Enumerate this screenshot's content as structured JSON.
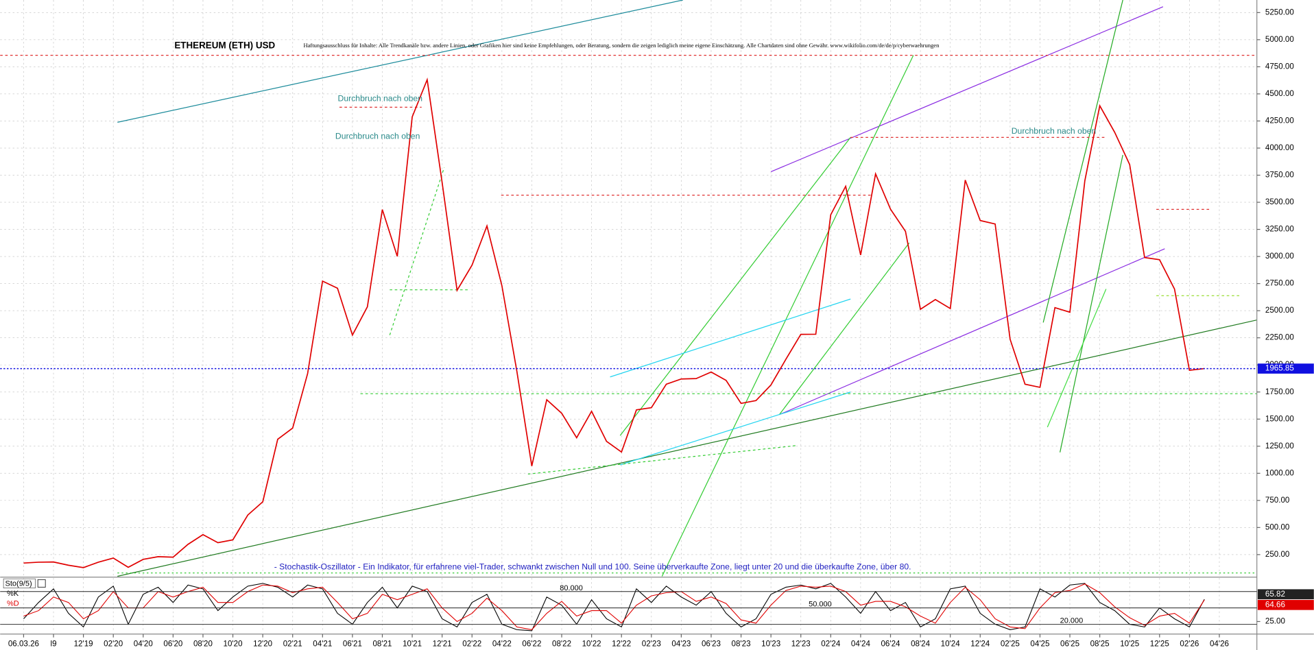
{
  "chart_data": {
    "type": "line",
    "title": "ETHEREUM (ETH) USD",
    "subtitle": "Haftungsausschluss für Inhalte: Alle Trendkanäle bzw. andere Linien, oder Grafiken hier sind keine Empfehlungen, oder Beratung, sondern die zeigen lediglich meine eigene Einschätzung. Alle Chartdaten sind ohne Gewähr. www.wikifolio.com/de/de/p/cyberwaehrungen",
    "annotations": [
      "Durchbruch nach oben",
      "Durchbruch nach oben",
      "Durchbruch nach oben",
      "- Stochastik-Oszillator - Ein Indikator, für erfahrene viel-Trader, schwankt zwischen Null und 100. Seine überverkaufte Zone, liegt unter 20 und die überkaufte Zone, über 80."
    ],
    "categories": [
      "06.03.26",
      null,
      "l9",
      null,
      "12'19",
      null,
      "02'20",
      null,
      "04'20",
      null,
      "06'20",
      null,
      "08'20",
      null,
      "10'20",
      null,
      "12'20",
      null,
      "02'21",
      null,
      "04'21",
      null,
      "06'21",
      null,
      "08'21",
      null,
      "10'21",
      null,
      "12'21",
      null,
      "02'22",
      null,
      "04'22",
      null,
      "06'22",
      null,
      "08'22",
      null,
      "10'22",
      null,
      "12'22",
      null,
      "02'23",
      null,
      "04'23",
      null,
      "06'23",
      null,
      "08'23",
      null,
      "10'23",
      null,
      "12'23",
      null,
      "02'24",
      null,
      "04'24",
      null,
      "06'24",
      null,
      "08'24",
      null,
      "10'24",
      null,
      "12'24",
      null,
      "02'25",
      null,
      "04'25",
      null,
      "06'25",
      null,
      "08'25",
      null,
      "10'25",
      null,
      "12'25",
      null,
      "02'26",
      null,
      "04'26"
    ],
    "values": [
      172,
      180,
      182,
      152,
      130,
      180,
      218,
      133,
      206,
      231,
      226,
      345,
      434,
      360,
      386,
      615,
      737,
      1314,
      1417,
      1919,
      2773,
      2707,
      2275,
      2536,
      3433,
      3001,
      4288,
      4631,
      3683,
      2688,
      2920,
      3282,
      2730,
      1942,
      1067,
      1679,
      1554,
      1328,
      1572,
      1295,
      1196,
      1585,
      1605,
      1822,
      1870,
      1874,
      1934,
      1857,
      1645,
      1671,
      1815,
      2052,
      2282,
      2283,
      3385,
      3647,
      3014,
      3762,
      3436,
      3232,
      2513,
      2603,
      2520,
      3705,
      3332,
      3300,
      2237,
      1822,
      1793,
      2528,
      2486,
      3698,
      4391,
      4145,
      3848,
      2990,
      2970,
      2700,
      1950,
      1965.85,
      null
    ],
    "color": "#e00000",
    "ylim": [
      50,
      5366
    ],
    "yticks": [
      {
        "value": 250,
        "label": "250.00"
      },
      {
        "value": 500,
        "label": "500.00"
      },
      {
        "value": 750,
        "label": "750.00"
      },
      {
        "value": 1000,
        "label": "1000.00"
      },
      {
        "value": 1250,
        "label": "1250.00"
      },
      {
        "value": 1500,
        "label": "1500.00"
      },
      {
        "value": 1750,
        "label": "1750.00"
      },
      {
        "value": 2000,
        "label": "2000.00"
      },
      {
        "value": 2250,
        "label": "2250.00"
      },
      {
        "value": 2500,
        "label": "2500.00"
      },
      {
        "value": 2750,
        "label": "2750.00"
      },
      {
        "value": 3000,
        "label": "3000.00"
      },
      {
        "value": 3250,
        "label": "3250.00"
      },
      {
        "value": 3500,
        "label": "3500.00"
      },
      {
        "value": 3750,
        "label": "3750.00"
      },
      {
        "value": 4000,
        "label": "4000.00"
      },
      {
        "value": 4250,
        "label": "4250.00"
      },
      {
        "value": 4500,
        "label": "4500.00"
      },
      {
        "value": 4750,
        "label": "4750.00"
      },
      {
        "value": 5000,
        "label": "5000.00"
      },
      {
        "value": 5250,
        "label": "5250.00"
      }
    ],
    "grid": true,
    "indicator": {
      "type": "line",
      "name": "Sto(9/5)",
      "ylim": [
        5,
        105
      ],
      "yticks": [
        {
          "value": 25,
          "label": "25.00"
        }
      ],
      "levels": [
        {
          "value": 80,
          "label": "80.000"
        },
        {
          "value": 50,
          "label": "50.000"
        },
        {
          "value": 20,
          "label": "20.000"
        }
      ],
      "series": [
        {
          "name": "%K",
          "color": "#000000",
          "values": [
            30,
            60,
            85,
            40,
            15,
            70,
            90,
            20,
            75,
            88,
            60,
            92,
            85,
            45,
            70,
            90,
            95,
            88,
            70,
            92,
            85,
            40,
            20,
            60,
            88,
            50,
            90,
            80,
            30,
            15,
            60,
            75,
            20,
            10,
            8,
            70,
            55,
            20,
            65,
            30,
            15,
            85,
            60,
            90,
            70,
            55,
            80,
            40,
            15,
            30,
            75,
            88,
            92,
            85,
            95,
            70,
            40,
            80,
            45,
            60,
            15,
            30,
            85,
            90,
            40,
            20,
            10,
            15,
            85,
            70,
            92,
            95,
            60,
            45,
            20,
            15,
            50,
            30,
            15,
            65.82,
            null
          ]
        },
        {
          "name": "%D",
          "color": "#e00000",
          "values": [
            35,
            45,
            70,
            60,
            30,
            45,
            80,
            50,
            50,
            80,
            70,
            80,
            88,
            60,
            60,
            80,
            92,
            90,
            78,
            85,
            88,
            60,
            30,
            40,
            75,
            65,
            75,
            85,
            50,
            25,
            40,
            68,
            45,
            15,
            10,
            40,
            62,
            35,
            45,
            45,
            22,
            55,
            72,
            78,
            80,
            62,
            70,
            58,
            28,
            22,
            55,
            82,
            90,
            88,
            90,
            80,
            55,
            62,
            62,
            52,
            35,
            22,
            60,
            88,
            65,
            30,
            15,
            12,
            50,
            78,
            82,
            94,
            78,
            52,
            32,
            18,
            35,
            40,
            22,
            64.66,
            null
          ]
        }
      ]
    }
  }
}
